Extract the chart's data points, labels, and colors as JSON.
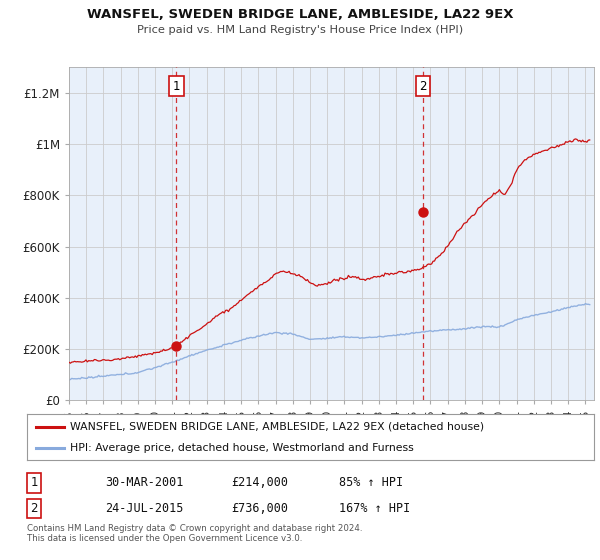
{
  "title1": "WANSFEL, SWEDEN BRIDGE LANE, AMBLESIDE, LA22 9EX",
  "title2": "Price paid vs. HM Land Registry's House Price Index (HPI)",
  "fig_bg_color": "#ffffff",
  "plot_bg_color": "#e8f0fa",
  "ylim": [
    0,
    1300000
  ],
  "xlim_start": 1995.0,
  "xlim_end": 2025.5,
  "yticks": [
    0,
    200000,
    400000,
    600000,
    800000,
    1000000,
    1200000
  ],
  "ytick_labels": [
    "£0",
    "£200K",
    "£400K",
    "£600K",
    "£800K",
    "£1M",
    "£1.2M"
  ],
  "xticks": [
    1995,
    1996,
    1997,
    1998,
    1999,
    2000,
    2001,
    2002,
    2003,
    2004,
    2005,
    2006,
    2007,
    2008,
    2009,
    2010,
    2011,
    2012,
    2013,
    2014,
    2015,
    2016,
    2017,
    2018,
    2019,
    2020,
    2021,
    2022,
    2023,
    2024,
    2025
  ],
  "marker1_x": 2001.24,
  "marker1_y": 214000,
  "marker2_x": 2015.56,
  "marker2_y": 736000,
  "sale_line_color": "#cc1111",
  "hpi_line_color": "#88aadd",
  "legend_sale_label": "WANSFEL, SWEDEN BRIDGE LANE, AMBLESIDE, LA22 9EX (detached house)",
  "legend_hpi_label": "HPI: Average price, detached house, Westmorland and Furness",
  "annotation1_num": "1",
  "annotation1_date": "30-MAR-2001",
  "annotation1_price": "£214,000",
  "annotation1_hpi": "85% ↑ HPI",
  "annotation2_num": "2",
  "annotation2_date": "24-JUL-2015",
  "annotation2_price": "£736,000",
  "annotation2_hpi": "167% ↑ HPI",
  "footer1": "Contains HM Land Registry data © Crown copyright and database right 2024.",
  "footer2": "This data is licensed under the Open Government Licence v3.0."
}
